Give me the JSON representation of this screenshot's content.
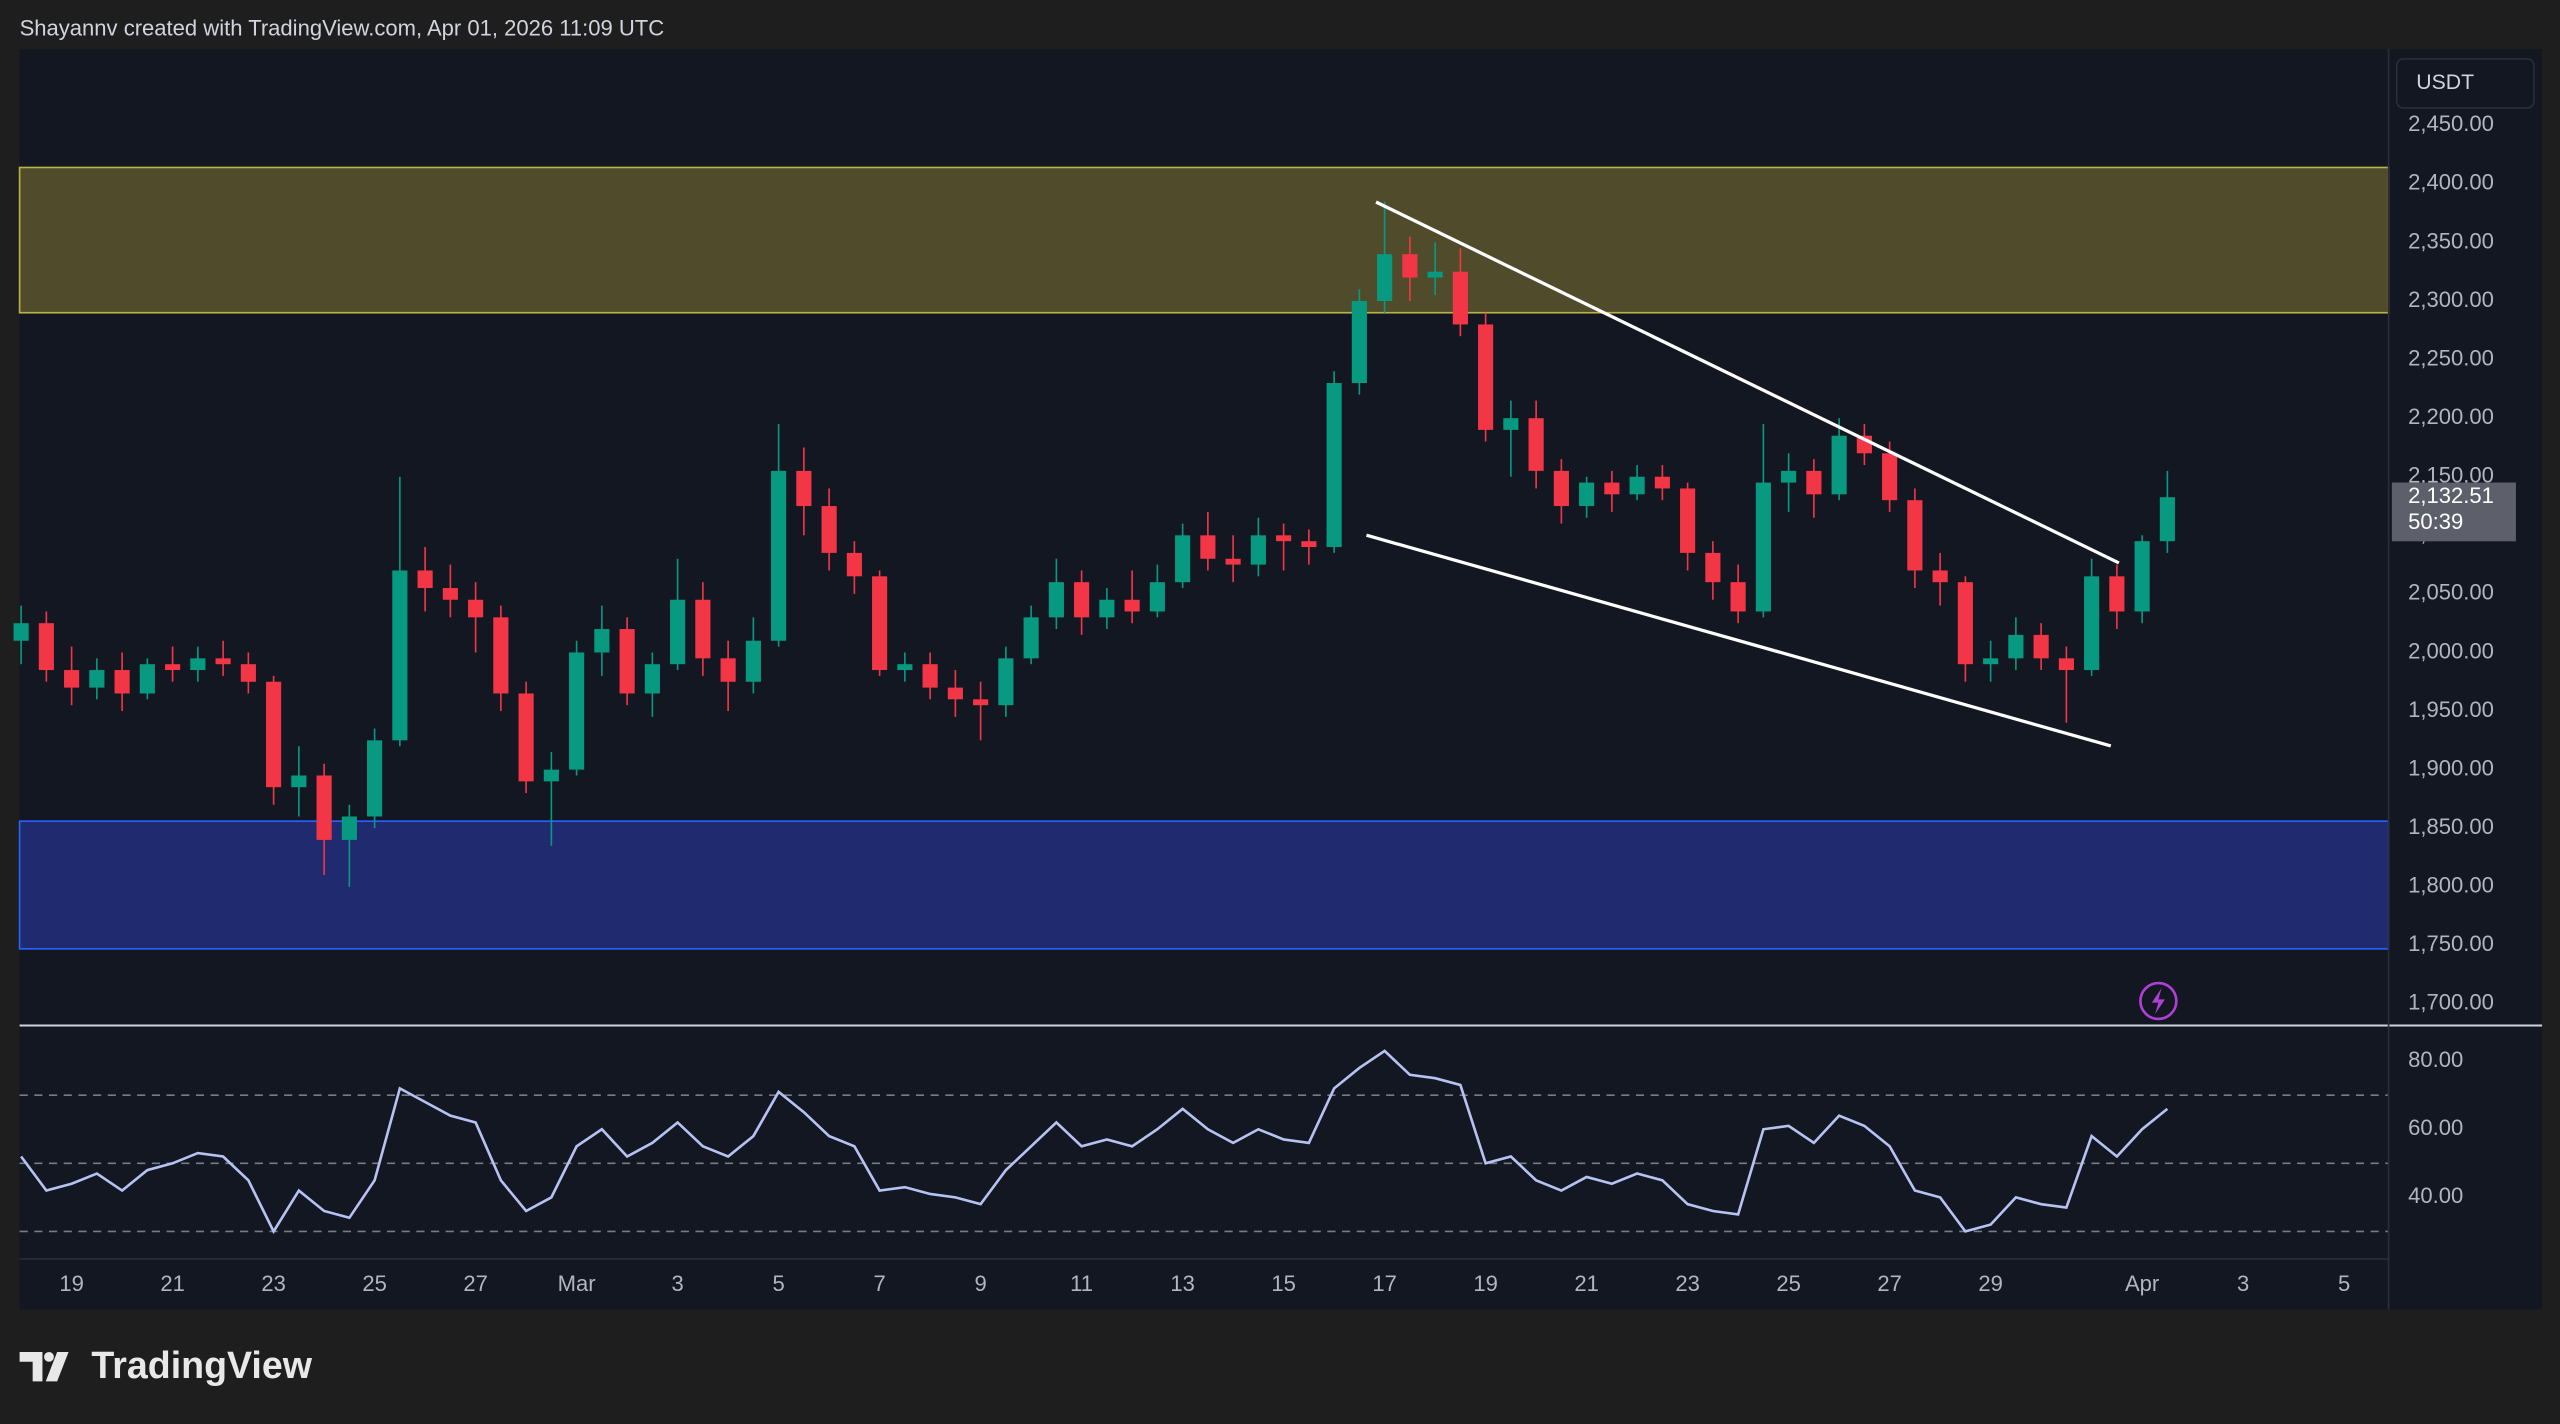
{
  "header": "Shayannv created with TradingView.com, Apr 01, 2026 11:09 UTC",
  "brand": "TradingView",
  "chart_data": {
    "type": "candlestick",
    "currency": "USDT",
    "up_color": "#089981",
    "down_color": "#f23645",
    "last_price": {
      "value": 2132.51,
      "label": "2,132.51"
    },
    "countdown": "50:39",
    "xlim": [
      -1.03,
      45.88
    ],
    "ylim": [
      1683,
      2515
    ],
    "xticks": [
      {
        "value": 0,
        "label": "19"
      },
      {
        "value": 2,
        "label": "21"
      },
      {
        "value": 4,
        "label": "23"
      },
      {
        "value": 6,
        "label": "25"
      },
      {
        "value": 8,
        "label": "27"
      },
      {
        "value": 10,
        "label": "Mar"
      },
      {
        "value": 12,
        "label": "3"
      },
      {
        "value": 14,
        "label": "5"
      },
      {
        "value": 16,
        "label": "7"
      },
      {
        "value": 18,
        "label": "9"
      },
      {
        "value": 20,
        "label": "11"
      },
      {
        "value": 22,
        "label": "13"
      },
      {
        "value": 24,
        "label": "15"
      },
      {
        "value": 26,
        "label": "17"
      },
      {
        "value": 28,
        "label": "19"
      },
      {
        "value": 30,
        "label": "21"
      },
      {
        "value": 32,
        "label": "23"
      },
      {
        "value": 34,
        "label": "25"
      },
      {
        "value": 36,
        "label": "27"
      },
      {
        "value": 38,
        "label": "29"
      },
      {
        "value": 41,
        "label": "Apr"
      },
      {
        "value": 43,
        "label": "3"
      },
      {
        "value": 45,
        "label": "5"
      }
    ],
    "yticks": [
      {
        "value": 1700,
        "label": "1,700.00"
      },
      {
        "value": 1750,
        "label": "1,750.00"
      },
      {
        "value": 1800,
        "label": "1,800.00"
      },
      {
        "value": 1850,
        "label": "1,850.00"
      },
      {
        "value": 1900,
        "label": "1,900.00"
      },
      {
        "value": 1950,
        "label": "1,950.00"
      },
      {
        "value": 2000,
        "label": "2,000.00"
      },
      {
        "value": 2050,
        "label": "2,050.00"
      },
      {
        "value": 2100,
        "label": "2,100.00"
      },
      {
        "value": 2150,
        "label": "2,150.00"
      },
      {
        "value": 2200,
        "label": "2,200.00"
      },
      {
        "value": 2250,
        "label": "2,250.00"
      },
      {
        "value": 2300,
        "label": "2,300.00"
      },
      {
        "value": 2350,
        "label": "2,350.00"
      },
      {
        "value": 2400,
        "label": "2,400.00"
      },
      {
        "value": 2450,
        "label": "2,450.00"
      }
    ],
    "zones": [
      {
        "from": 2290,
        "to": 2414,
        "color": "#4f4b2b",
        "border": "#b9b344"
      },
      {
        "from": 1747,
        "to": 1856,
        "color": "#1f2b6e",
        "border": "#2962ff"
      }
    ],
    "trendlines": [
      {
        "x": [
          25.83,
          40.54
        ],
        "y": [
          2384.5,
          2076.4
        ]
      },
      {
        "x": [
          25.64,
          40.38
        ],
        "y": [
          2100.1,
          1920.2
        ]
      }
    ],
    "x": [
      -1,
      -0.5,
      0,
      0.5,
      1,
      1.5,
      2,
      2.5,
      3,
      3.5,
      4,
      4.5,
      5,
      5.5,
      6,
      6.5,
      7,
      7.5,
      8,
      8.5,
      9,
      9.5,
      10,
      10.5,
      11,
      11.5,
      12,
      12.5,
      13,
      13.5,
      14,
      14.5,
      15,
      15.5,
      16,
      16.5,
      17,
      17.5,
      18,
      18.5,
      19,
      19.5,
      20,
      20.5,
      21,
      21.5,
      22,
      22.5,
      23,
      23.5,
      24,
      24.5,
      25,
      25.5,
      26,
      26.5,
      27,
      27.5,
      28,
      28.5,
      29,
      29.5,
      30,
      30.5,
      31,
      31.5,
      32,
      32.5,
      33,
      33.5,
      34,
      34.5,
      35,
      35.5,
      36,
      36.5,
      37,
      37.5,
      38,
      38.5,
      39,
      39.5,
      40,
      40.5,
      41,
      41.5
    ],
    "open": [
      2010,
      2025,
      1985,
      1970,
      1985,
      1965,
      1990,
      1985,
      1995,
      1990,
      1975,
      1885,
      1895,
      1840,
      1860,
      1925,
      2070,
      2055,
      2045,
      2030,
      1965,
      1890,
      1900,
      2000,
      2020,
      1965,
      1990,
      2045,
      1995,
      1975,
      2010,
      2155,
      2125,
      2085,
      2065,
      1985,
      1990,
      1970,
      1960,
      1955,
      1995,
      2030,
      2060,
      2030,
      2045,
      2035,
      2060,
      2100,
      2080,
      2075,
      2100,
      2095,
      2090,
      2230,
      2300,
      2340,
      2320,
      2325,
      2280,
      2190,
      2200,
      2155,
      2125,
      2145,
      2135,
      2150,
      2140,
      2085,
      2060,
      2035,
      2145,
      2155,
      2135,
      2185,
      2170,
      2130,
      2070,
      2060,
      1990,
      1995,
      2015,
      1995,
      1985,
      2065,
      2035,
      2095
    ],
    "high": [
      2040,
      2035,
      2005,
      1995,
      2000,
      1995,
      2005,
      2005,
      2010,
      2000,
      1980,
      1920,
      1905,
      1870,
      1935,
      2150,
      2090,
      2075,
      2060,
      2040,
      1975,
      1915,
      2010,
      2040,
      2030,
      2000,
      2080,
      2060,
      2010,
      2030,
      2195,
      2175,
      2140,
      2095,
      2070,
      2000,
      2000,
      1985,
      1975,
      2005,
      2040,
      2080,
      2070,
      2055,
      2070,
      2075,
      2110,
      2120,
      2100,
      2115,
      2110,
      2105,
      2240,
      2310,
      2385,
      2355,
      2350,
      2345,
      2290,
      2215,
      2215,
      2165,
      2150,
      2155,
      2160,
      2160,
      2145,
      2095,
      2075,
      2195,
      2170,
      2165,
      2200,
      2195,
      2180,
      2140,
      2085,
      2065,
      2010,
      2030,
      2025,
      2005,
      2080,
      2075,
      2100,
      2155
    ],
    "low": [
      1990,
      1975,
      1955,
      1960,
      1950,
      1960,
      1975,
      1975,
      1980,
      1965,
      1870,
      1860,
      1810,
      1800,
      1850,
      1920,
      2035,
      2030,
      2000,
      1950,
      1880,
      1835,
      1895,
      1980,
      1955,
      1945,
      1985,
      1980,
      1950,
      1965,
      2005,
      2100,
      2070,
      2050,
      1980,
      1975,
      1960,
      1945,
      1925,
      1945,
      1990,
      2020,
      2015,
      2020,
      2025,
      2030,
      2055,
      2070,
      2060,
      2065,
      2070,
      2075,
      2085,
      2220,
      2290,
      2300,
      2305,
      2270,
      2180,
      2150,
      2140,
      2110,
      2115,
      2120,
      2130,
      2130,
      2070,
      2045,
      2025,
      2030,
      2120,
      2115,
      2130,
      2160,
      2120,
      2055,
      2040,
      1975,
      1975,
      1985,
      1985,
      1940,
      1980,
      2020,
      2025,
      2085
    ],
    "close": [
      2025,
      1985,
      1970,
      1985,
      1965,
      1990,
      1985,
      1995,
      1990,
      1975,
      1885,
      1895,
      1840,
      1860,
      1925,
      2070,
      2055,
      2045,
      2030,
      1965,
      1890,
      1900,
      2000,
      2020,
      1965,
      1990,
      2045,
      1995,
      1975,
      2010,
      2155,
      2125,
      2085,
      2065,
      1985,
      1990,
      1970,
      1960,
      1955,
      1995,
      2030,
      2060,
      2030,
      2045,
      2035,
      2060,
      2100,
      2080,
      2075,
      2100,
      2095,
      2090,
      2230,
      2300,
      2340,
      2320,
      2325,
      2280,
      2190,
      2200,
      2155,
      2125,
      2145,
      2135,
      2150,
      2140,
      2085,
      2060,
      2035,
      2145,
      2155,
      2135,
      2185,
      2170,
      2130,
      2070,
      2060,
      1990,
      1995,
      2015,
      1995,
      1985,
      2065,
      2035,
      2095,
      2132.51
    ],
    "rsi": {
      "color": "#b6c3f2",
      "ylim": [
        22.4,
        90
      ],
      "yticks": [
        {
          "value": 40,
          "label": "40.00"
        },
        {
          "value": 60,
          "label": "60.00"
        },
        {
          "value": 80,
          "label": "80.00"
        }
      ],
      "levels": [
        70,
        50,
        30
      ],
      "values": [
        52,
        42,
        44,
        47,
        42,
        48,
        50,
        53,
        52,
        45,
        30,
        42,
        36,
        34,
        45,
        72,
        68,
        64,
        62,
        45,
        36,
        40,
        55,
        60,
        52,
        56,
        62,
        55,
        52,
        58,
        71,
        65,
        58,
        55,
        42,
        43,
        41,
        40,
        38,
        48,
        55,
        62,
        55,
        57,
        55,
        60,
        66,
        60,
        56,
        60,
        57,
        56,
        72,
        78,
        83,
        76,
        75,
        73,
        50,
        52,
        45,
        42,
        46,
        44,
        47,
        45,
        38,
        36,
        35,
        60,
        61,
        56,
        64,
        61,
        55,
        42,
        40,
        30,
        32,
        40,
        38,
        37,
        58,
        52,
        60,
        66
      ]
    }
  }
}
